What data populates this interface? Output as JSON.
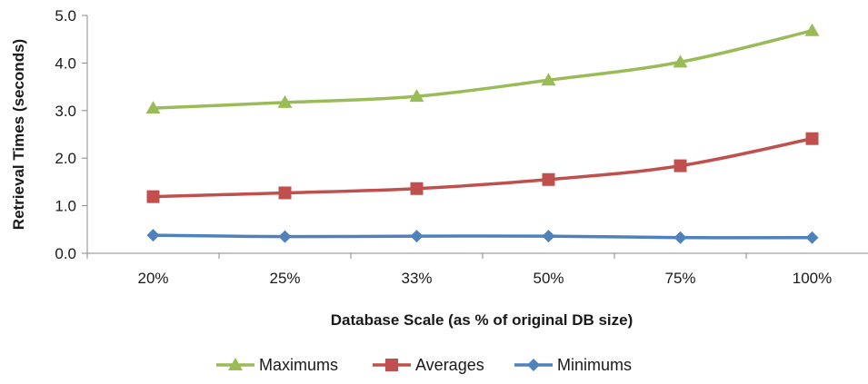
{
  "chart_data": {
    "type": "line",
    "title": "",
    "xlabel": "Database Scale (as % of original DB size)",
    "ylabel": "Retrieval Times (seconds)",
    "categories": [
      "20%",
      "25%",
      "33%",
      "50%",
      "75%",
      "100%"
    ],
    "ylim": [
      0,
      5
    ],
    "yticks": [
      "0.0",
      "1.0",
      "2.0",
      "3.0",
      "4.0",
      "5.0"
    ],
    "grid": false,
    "legend_position": "bottom",
    "series": [
      {
        "name": "Maximums",
        "marker": "triangle",
        "color": "#9bbb59",
        "values": [
          3.05,
          3.17,
          3.3,
          3.64,
          4.02,
          4.68
        ]
      },
      {
        "name": "Averages",
        "marker": "square",
        "color": "#c0504d",
        "values": [
          1.19,
          1.27,
          1.36,
          1.55,
          1.84,
          2.41
        ]
      },
      {
        "name": "Minimums",
        "marker": "diamond",
        "color": "#4f81bd",
        "values": [
          0.38,
          0.35,
          0.36,
          0.36,
          0.33,
          0.33
        ]
      }
    ]
  }
}
